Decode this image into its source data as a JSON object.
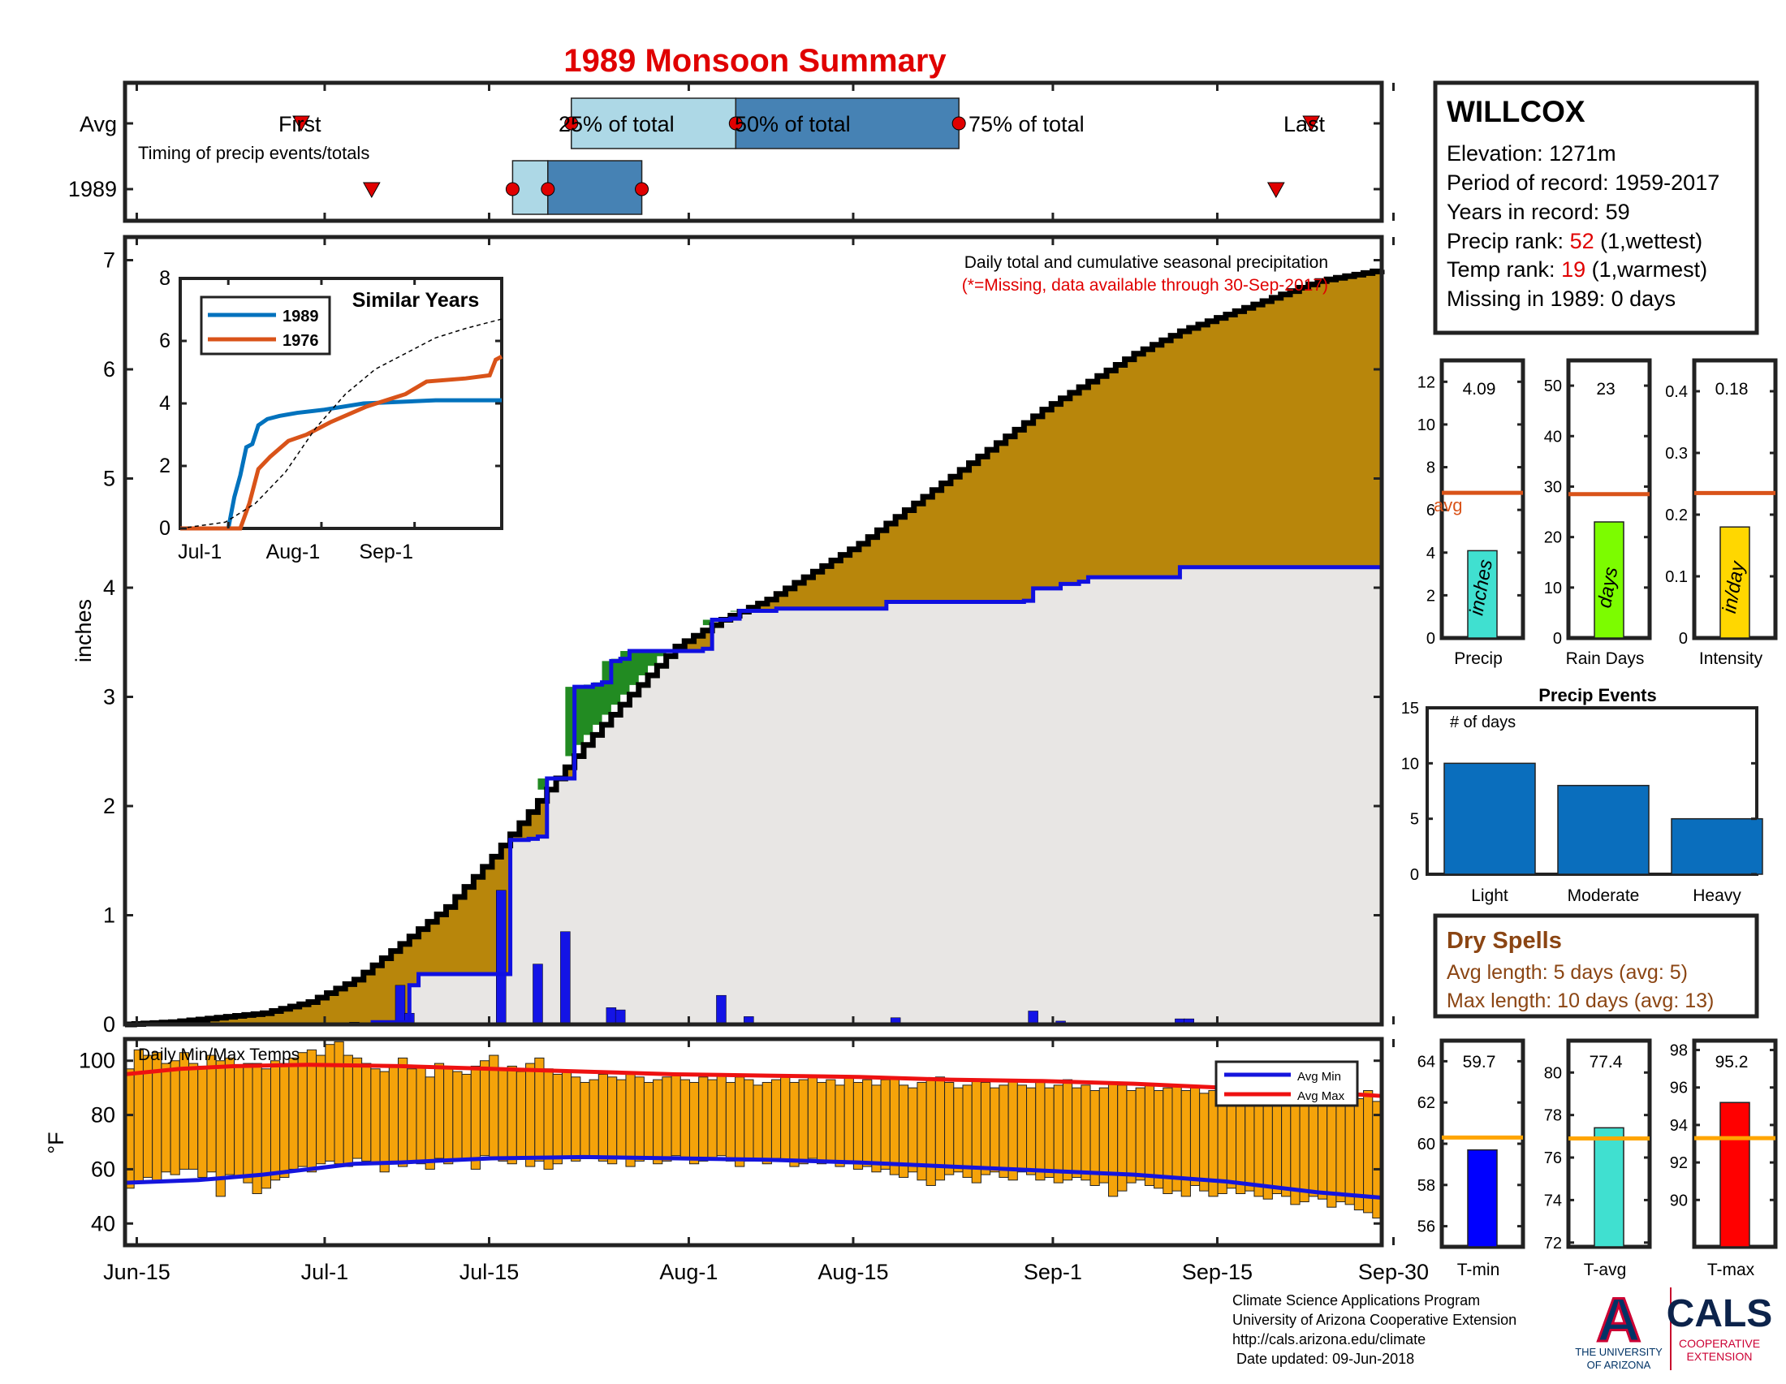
{
  "title": "1989 Monsoon Summary",
  "timing": {
    "rows": [
      "Avg",
      "1989"
    ],
    "caption": "Timing of precip events/totals",
    "avg_labels": {
      "first": "First",
      "p25": "25% of total",
      "p50": "50% of total",
      "p75": "75% of total",
      "last": "Last"
    },
    "avg_dates": {
      "first": "Jun-29",
      "p25": "Jul-22",
      "p50": "Aug-5",
      "p75": "Aug-24",
      "last": "Sep-23"
    },
    "year_dates": {
      "first": "Jul-5",
      "p25": "Jul-17",
      "p50": "Jul-20",
      "p75": "Jul-28",
      "last": "Sep-20"
    }
  },
  "main_chart": {
    "ylabel": "inches",
    "note": "Daily total and cumulative seasonal precipitation",
    "missing_note": "(*=Missing, data available through 30-Sep-2017)",
    "x_ticks": [
      "Jun-15",
      "Jul-1",
      "Jul-15",
      "Aug-1",
      "Aug-15",
      "Sep-1",
      "Sep-15",
      "Sep-30"
    ],
    "y_ticks": [
      "0",
      "1",
      "2",
      "3",
      "4",
      "5",
      "6",
      "7"
    ]
  },
  "inset": {
    "title": "Similar Years",
    "legend": [
      "1989",
      "1976"
    ],
    "x_ticks": [
      "Jul-1",
      "Aug-1",
      "Sep-1"
    ],
    "y_ticks": [
      "0",
      "2",
      "4",
      "6",
      "8"
    ]
  },
  "temp_chart": {
    "label": "Daily Min/Max Temps",
    "ylabel": "°F",
    "y_ticks": [
      "40",
      "60",
      "80",
      "100"
    ],
    "legend": [
      "Avg Min",
      "Avg Max"
    ]
  },
  "station": {
    "name": "WILLCOX",
    "elevation": "Elevation: 1271m",
    "period": "Period of record: 1959-2017",
    "years": "Years in record: 59",
    "precip_rank_prefix": "Precip rank: ",
    "precip_rank": "52",
    "precip_rank_suffix": " (1,wettest)",
    "temp_rank_prefix": "Temp rank: ",
    "temp_rank": "19",
    "temp_rank_suffix": " (1,warmest)",
    "missing": "Missing in 1989: 0 days"
  },
  "mini_bars": [
    {
      "label": "Precip",
      "unit": "inches",
      "value_text": "4.09",
      "avg_label": "avg",
      "ticks": [
        "0",
        "2",
        "4",
        "6",
        "8",
        "10",
        "12"
      ]
    },
    {
      "label": "Rain Days",
      "unit": "days",
      "value_text": "23",
      "ticks": [
        "0",
        "10",
        "20",
        "30",
        "40",
        "50"
      ]
    },
    {
      "label": "Intensity",
      "unit": "in/day",
      "value_text": "0.18",
      "ticks": [
        "0",
        "0.1",
        "0.2",
        "0.3",
        "0.4"
      ]
    }
  ],
  "events": {
    "title": "Precip Events",
    "ylabel": "# of days",
    "ticks": [
      "0",
      "5",
      "10",
      "15"
    ],
    "categories": [
      "Light",
      "Moderate",
      "Heavy"
    ]
  },
  "dry_spells": {
    "title": "Dry Spells",
    "avg": "Avg length: 5 days (avg: 5)",
    "max": "Max length: 10 days (avg: 13)"
  },
  "temp_bars": [
    {
      "label": "T-min",
      "value_text": "59.7",
      "ticks": [
        "56",
        "58",
        "60",
        "62",
        "64"
      ]
    },
    {
      "label": "T-avg",
      "value_text": "77.4",
      "ticks": [
        "72",
        "74",
        "76",
        "78",
        "80"
      ]
    },
    {
      "label": "T-max",
      "value_text": "95.2",
      "ticks": [
        "90",
        "92",
        "94",
        "96",
        "98"
      ]
    }
  ],
  "footer": {
    "line1": "Climate Science Applications Program",
    "line2": "University of Arizona Cooperative Extension",
    "line3": "http://cals.arizona.edu/climate",
    "line4": " Date updated: 09-Jun-2018",
    "ua_letter": "A",
    "ua_line1": "THE UNIVERSITY",
    "ua_line2": "OF ARIZONA",
    "cals": "CALS",
    "cals_sub1": "COOPERATIVE",
    "cals_sub2": "EXTENSION"
  },
  "colors": {
    "title": "#e00000",
    "cum_avg_fill": "#b8860b",
    "cum_year_fill": "#e8e6e4",
    "above_fill": "#228b22",
    "year_line": "#1010e0",
    "daily_bar": "#1414e6",
    "temp_bar": "#f5a30a",
    "avg_max": "#ee1111",
    "avg_min": "#1515dd",
    "timing_light": "#add8e6",
    "timing_dark": "#4682b4",
    "events_bar": "#0a6ebd",
    "dry_text": "#8b4513"
  },
  "chart_data": [
    {
      "type": "area",
      "title": "Daily total and cumulative seasonal precipitation",
      "ylabel": "inches",
      "ylim": [
        0,
        7
      ],
      "x_range": [
        "Jun-15",
        "Sep-30"
      ],
      "avg_cumulative": {
        "name": "avg",
        "points": [
          [
            0,
            0
          ],
          [
            5,
            0.02
          ],
          [
            10,
            0.06
          ],
          [
            15,
            0.1
          ],
          [
            20,
            0.2
          ],
          [
            25,
            0.4
          ],
          [
            30,
            0.72
          ],
          [
            35,
            1.05
          ],
          [
            40,
            1.5
          ],
          [
            45,
            2.0
          ],
          [
            50,
            2.5
          ],
          [
            55,
            2.95
          ],
          [
            60,
            3.38
          ],
          [
            65,
            3.62
          ],
          [
            70,
            3.8
          ],
          [
            75,
            4.05
          ],
          [
            80,
            4.3
          ],
          [
            85,
            4.6
          ],
          [
            90,
            4.9
          ],
          [
            95,
            5.2
          ],
          [
            100,
            5.5
          ],
          [
            105,
            5.75
          ],
          [
            110,
            6.0
          ],
          [
            115,
            6.2
          ],
          [
            120,
            6.35
          ],
          [
            125,
            6.5
          ],
          [
            130,
            6.65
          ],
          [
            137,
            6.75
          ]
        ]
      },
      "year_cumulative": {
        "name": "1989",
        "points": [
          [
            0,
            0
          ],
          [
            25,
            0
          ],
          [
            27,
            0.02
          ],
          [
            31,
            0.35
          ],
          [
            32,
            0.45
          ],
          [
            41,
            0.45
          ],
          [
            42,
            1.65
          ],
          [
            44,
            1.66
          ],
          [
            45,
            1.68
          ],
          [
            46,
            2.2
          ],
          [
            48,
            2.2
          ],
          [
            49,
            3.02
          ],
          [
            51,
            3.04
          ],
          [
            52,
            3.06
          ],
          [
            53,
            3.25
          ],
          [
            54,
            3.27
          ],
          [
            55,
            3.34
          ],
          [
            63,
            3.36
          ],
          [
            64,
            3.62
          ],
          [
            66,
            3.63
          ],
          [
            67,
            3.7
          ],
          [
            71,
            3.72
          ],
          [
            83,
            3.78
          ],
          [
            98,
            3.79
          ],
          [
            99,
            3.9
          ],
          [
            102,
            3.94
          ],
          [
            104,
            3.96
          ],
          [
            105,
            4.0
          ],
          [
            114,
            4.0
          ],
          [
            115,
            4.09
          ],
          [
            137,
            4.09
          ]
        ]
      },
      "daily_precip": {
        "name": "1989",
        "points": [
          [
            25,
            0.02
          ],
          [
            30,
            0.35
          ],
          [
            31,
            0.1
          ],
          [
            41,
            1.2
          ],
          [
            45,
            0.54
          ],
          [
            48,
            0.83
          ],
          [
            53,
            0.15
          ],
          [
            54,
            0.13
          ],
          [
            65,
            0.26
          ],
          [
            68,
            0.07
          ],
          [
            84,
            0.06
          ],
          [
            99,
            0.12
          ],
          [
            102,
            0.03
          ],
          [
            115,
            0.05
          ],
          [
            116,
            0.05
          ]
        ]
      }
    },
    {
      "type": "line",
      "title": "Similar Years",
      "x_ticks": [
        "Jul-1",
        "Aug-1",
        "Sep-1"
      ],
      "ylim": [
        0,
        8
      ],
      "series": [
        {
          "name": "1989",
          "values": [
            [
              0,
              0
            ],
            [
              16,
              0
            ],
            [
              18,
              1.0
            ],
            [
              20,
              1.7
            ],
            [
              22,
              2.6
            ],
            [
              24,
              2.7
            ],
            [
              26,
              3.3
            ],
            [
              29,
              3.5
            ],
            [
              33,
              3.6
            ],
            [
              39,
              3.7
            ],
            [
              48,
              3.8
            ],
            [
              61,
              4.0
            ],
            [
              85,
              4.1
            ],
            [
              107,
              4.1
            ]
          ]
        },
        {
          "name": "1976",
          "values": [
            [
              0,
              0
            ],
            [
              20,
              0
            ],
            [
              23,
              0.8
            ],
            [
              26,
              1.9
            ],
            [
              30,
              2.3
            ],
            [
              36,
              2.8
            ],
            [
              42,
              3.0
            ],
            [
              50,
              3.4
            ],
            [
              62,
              3.9
            ],
            [
              75,
              4.3
            ],
            [
              82,
              4.7
            ],
            [
              95,
              4.8
            ],
            [
              103,
              4.9
            ],
            [
              105,
              5.4
            ],
            [
              107,
              5.5
            ]
          ]
        },
        {
          "values": [
            [
              0,
              0
            ],
            [
              15,
              0.2
            ],
            [
              25,
              0.8
            ],
            [
              35,
              1.8
            ],
            [
              45,
              3.2
            ],
            [
              55,
              4.3
            ],
            [
              65,
              5.1
            ],
            [
              75,
              5.6
            ],
            [
              85,
              6.1
            ],
            [
              95,
              6.4
            ],
            [
              107,
              6.7
            ]
          ]
        }
      ]
    },
    {
      "type": "bar",
      "title": "Daily Min/Max Temps",
      "ylabel": "°F",
      "ylim": [
        32,
        108
      ],
      "bar_low": [
        53,
        55,
        57,
        55,
        59,
        58,
        60,
        60,
        57,
        59,
        50,
        58,
        57,
        55,
        51,
        53,
        56,
        57,
        60,
        61,
        59,
        62,
        63,
        62,
        61,
        64,
        63,
        62,
        59,
        63,
        61,
        63,
        62,
        60,
        64,
        62,
        63,
        64,
        60,
        65,
        64,
        63,
        62,
        64,
        61,
        63,
        60,
        62,
        64,
        63,
        64,
        65,
        63,
        62,
        64,
        61,
        63,
        64,
        62,
        63,
        65,
        64,
        62,
        63,
        64,
        65,
        63,
        61,
        63,
        64,
        62,
        64,
        63,
        61,
        62,
        64,
        62,
        63,
        61,
        62,
        60,
        61,
        59,
        60,
        58,
        57,
        59,
        56,
        54,
        56,
        58,
        59,
        57,
        55,
        58,
        59,
        57,
        56,
        59,
        58,
        56,
        57,
        55,
        56,
        57,
        56,
        54,
        55,
        50,
        52,
        55,
        56,
        54,
        53,
        51,
        52,
        50,
        54,
        52,
        50,
        51,
        53,
        51,
        52,
        50,
        49,
        51,
        50,
        47,
        48,
        50,
        49,
        46,
        48,
        47,
        45,
        44,
        42
      ],
      "bar_high": [
        97,
        104,
        102,
        103,
        99,
        100,
        103,
        99,
        98,
        102,
        100,
        101,
        98,
        99,
        99,
        97,
        100,
        99,
        101,
        103,
        104,
        102,
        106,
        107,
        102,
        101,
        99,
        97,
        96,
        98,
        101,
        97,
        98,
        94,
        99,
        97,
        96,
        95,
        98,
        100,
        102,
        97,
        98,
        96,
        99,
        101,
        97,
        95,
        96,
        94,
        92,
        93,
        95,
        94,
        93,
        95,
        94,
        92,
        93,
        94,
        95,
        93,
        92,
        94,
        93,
        95,
        92,
        94,
        93,
        91,
        92,
        93,
        94,
        92,
        93,
        94,
        92,
        93,
        91,
        94,
        92,
        93,
        91,
        93,
        94,
        91,
        90,
        92,
        93,
        94,
        92,
        90,
        91,
        93,
        92,
        90,
        91,
        93,
        91,
        90,
        92,
        90,
        91,
        93,
        90,
        91,
        89,
        90,
        92,
        91,
        89,
        90,
        91,
        89,
        90,
        91,
        89,
        90,
        88,
        89,
        90,
        89,
        91,
        88,
        90,
        89,
        88,
        90,
        87,
        89,
        88,
        89,
        90,
        87,
        88,
        86,
        89,
        85
      ],
      "series": [
        {
          "name": "Avg Max",
          "values": [
            [
              0,
              95
            ],
            [
              6,
              97
            ],
            [
              12,
              98
            ],
            [
              20,
              98.5
            ],
            [
              30,
              98
            ],
            [
              40,
              97
            ],
            [
              50,
              96
            ],
            [
              60,
              95
            ],
            [
              70,
              94.5
            ],
            [
              80,
              94
            ],
            [
              90,
              93
            ],
            [
              100,
              92.5
            ],
            [
              110,
              91.5
            ],
            [
              120,
              90
            ],
            [
              130,
              88.5
            ],
            [
              137,
              87
            ]
          ]
        },
        {
          "name": "Avg Min",
          "values": [
            [
              0,
              55
            ],
            [
              8,
              56
            ],
            [
              15,
              58
            ],
            [
              20,
              60
            ],
            [
              25,
              62
            ],
            [
              30,
              62.5
            ],
            [
              40,
              64
            ],
            [
              50,
              64.5
            ],
            [
              60,
              64
            ],
            [
              70,
              63.5
            ],
            [
              80,
              62.5
            ],
            [
              90,
              61
            ],
            [
              100,
              59.5
            ],
            [
              110,
              58
            ],
            [
              120,
              55.5
            ],
            [
              130,
              51.5
            ],
            [
              137,
              49.5
            ]
          ]
        }
      ]
    },
    {
      "type": "bar",
      "categories": [
        "Precip"
      ],
      "values": [
        4.09
      ],
      "avg": 6.8,
      "ylim": [
        0,
        13
      ],
      "ylabel": "inches"
    },
    {
      "type": "bar",
      "categories": [
        "Rain Days"
      ],
      "values": [
        23
      ],
      "avg": 28.5,
      "ylim": [
        0,
        55
      ],
      "ylabel": "days"
    },
    {
      "type": "bar",
      "categories": [
        "Intensity"
      ],
      "values": [
        0.18
      ],
      "avg": 0.235,
      "ylim": [
        0,
        0.45
      ],
      "ylabel": "in/day"
    },
    {
      "type": "bar",
      "title": "Precip Events",
      "ylabel": "# of days",
      "categories": [
        "Light",
        "Moderate",
        "Heavy"
      ],
      "values": [
        10,
        8,
        5
      ],
      "ylim": [
        0,
        15
      ]
    },
    {
      "type": "bar",
      "categories": [
        "T-min"
      ],
      "values": [
        59.7
      ],
      "avg": 60.3,
      "ylim": [
        55,
        65
      ]
    },
    {
      "type": "bar",
      "categories": [
        "T-avg"
      ],
      "values": [
        77.4
      ],
      "avg": 76.9,
      "ylim": [
        71.8,
        81.5
      ]
    },
    {
      "type": "bar",
      "categories": [
        "T-max"
      ],
      "values": [
        95.2
      ],
      "avg": 93.3,
      "ylim": [
        87.5,
        98.5
      ]
    }
  ]
}
